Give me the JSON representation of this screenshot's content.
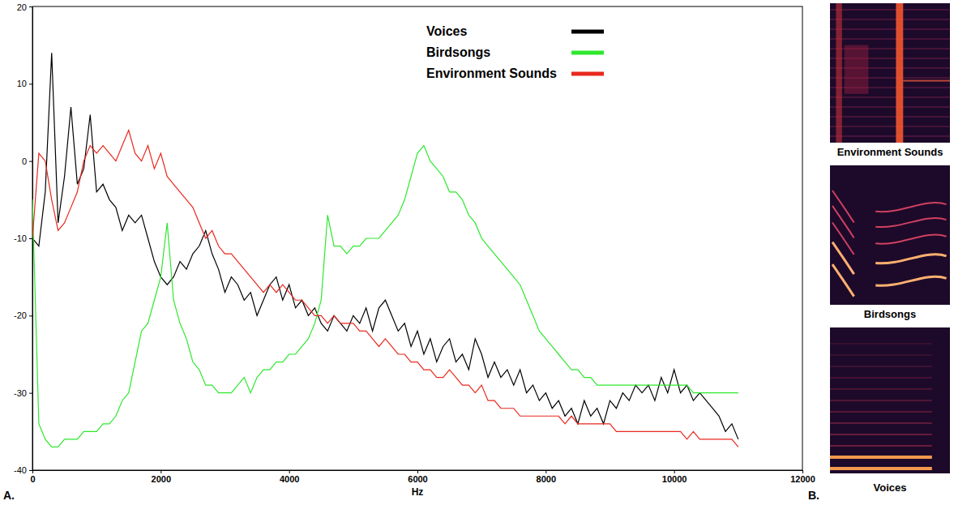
{
  "chart_data": {
    "type": "line",
    "panel_label": "A.",
    "x_label": "Hz",
    "xlim": [
      0,
      12000
    ],
    "xticks": [
      0,
      2000,
      4000,
      6000,
      8000,
      10000,
      12000
    ],
    "ylim": [
      -40,
      20
    ],
    "yticks": [
      -40,
      -30,
      -20,
      -10,
      0,
      10,
      20
    ],
    "grid": false,
    "legend": "upper right",
    "x": [
      0,
      100,
      200,
      300,
      400,
      500,
      600,
      700,
      800,
      900,
      1000,
      1100,
      1200,
      1300,
      1400,
      1500,
      1600,
      1700,
      1800,
      1900,
      2000,
      2100,
      2200,
      2300,
      2400,
      2500,
      2600,
      2700,
      2800,
      2900,
      3000,
      3100,
      3200,
      3300,
      3400,
      3500,
      3600,
      3700,
      3800,
      3900,
      4000,
      4100,
      4200,
      4300,
      4400,
      4500,
      4600,
      4700,
      4800,
      4900,
      5000,
      5100,
      5200,
      5300,
      5400,
      5500,
      5600,
      5700,
      5800,
      5900,
      6000,
      6100,
      6200,
      6300,
      6400,
      6500,
      6600,
      6700,
      6800,
      6900,
      7000,
      7100,
      7200,
      7300,
      7400,
      7500,
      7600,
      7700,
      7800,
      7900,
      8000,
      8100,
      8200,
      8300,
      8400,
      8500,
      8600,
      8700,
      8800,
      8900,
      9000,
      9100,
      9200,
      9300,
      9400,
      9500,
      9600,
      9700,
      9800,
      9900,
      10000,
      10100,
      10200,
      10300,
      10400,
      10500,
      10600,
      10700,
      10800,
      10900,
      11000
    ],
    "series": [
      {
        "name": "Voices",
        "color": "#000000",
        "values": [
          -10,
          -11,
          -4,
          14,
          -8,
          -2,
          7,
          -3,
          -1,
          6,
          -4,
          -3,
          -5,
          -6,
          -9,
          -7,
          -8,
          -7,
          -10,
          -13,
          -15,
          -16,
          -15,
          -13,
          -14,
          -12,
          -11,
          -9,
          -12,
          -14,
          -17,
          -15,
          -16,
          -18,
          -17,
          -20,
          -18,
          -16,
          -15,
          -18,
          -16,
          -19,
          -18,
          -20,
          -19,
          -21,
          -22,
          -20,
          -21,
          -22,
          -20,
          -21,
          -19,
          -22,
          -19,
          -18,
          -20,
          -22,
          -21,
          -24,
          -22,
          -25,
          -23,
          -26,
          -24,
          -23,
          -26,
          -25,
          -27,
          -23,
          -25,
          -28,
          -26,
          -28,
          -27,
          -29,
          -27,
          -30,
          -29,
          -31,
          -30,
          -32,
          -31,
          -33,
          -32,
          -34,
          -31,
          -33,
          -32,
          -34,
          -31,
          -32,
          -30,
          -31,
          -29,
          -30,
          -29,
          -31,
          -28,
          -30,
          -27,
          -30,
          -29,
          -31,
          -30,
          -31,
          -32,
          -33,
          -35,
          -34,
          -36
        ]
      },
      {
        "name": "Birdsongs",
        "color": "#2ee82e",
        "values": [
          -5,
          -34,
          -36,
          -37,
          -37,
          -36,
          -36,
          -36,
          -35,
          -35,
          -35,
          -34,
          -34,
          -33,
          -31,
          -30,
          -26,
          -22,
          -21,
          -18,
          -15,
          -8,
          -18,
          -21,
          -23,
          -26,
          -27,
          -29,
          -29,
          -30,
          -30,
          -30,
          -29,
          -28,
          -30,
          -28,
          -27,
          -27,
          -26,
          -26,
          -25,
          -25,
          -24,
          -23,
          -21,
          -18,
          -7,
          -11,
          -11,
          -12,
          -11,
          -11,
          -10,
          -10,
          -10,
          -9,
          -8,
          -7,
          -5,
          -2,
          1,
          2,
          0,
          -1,
          -2,
          -4,
          -4,
          -5,
          -7,
          -8,
          -10,
          -11,
          -12,
          -13,
          -14,
          -15,
          -16,
          -18,
          -20,
          -22,
          -23,
          -24,
          -25,
          -26,
          -27,
          -27,
          -28,
          -28,
          -29,
          -29,
          -29,
          -29,
          -29,
          -29,
          -29,
          -29,
          -29,
          -29,
          -29,
          -29,
          -29,
          -29,
          -29,
          -30,
          -30,
          -30,
          -30,
          -30,
          -30,
          -30,
          -30
        ]
      },
      {
        "name": "Environment Sounds",
        "color": "#e8281e",
        "values": [
          -10,
          1,
          0,
          -5,
          -9,
          -8,
          -6,
          -4,
          0,
          2,
          1,
          2,
          1,
          0,
          2,
          4,
          1,
          0,
          2,
          -1,
          1,
          -2,
          -3,
          -4,
          -5,
          -6,
          -8,
          -10,
          -9,
          -11,
          -12,
          -12,
          -13,
          -14,
          -15,
          -16,
          -17,
          -16,
          -17,
          -16,
          -17,
          -18,
          -18,
          -19,
          -20,
          -20,
          -21,
          -20,
          -21,
          -21,
          -21,
          -22,
          -22,
          -23,
          -24,
          -23,
          -24,
          -25,
          -25,
          -26,
          -26,
          -27,
          -27,
          -28,
          -28,
          -27,
          -28,
          -29,
          -29,
          -30,
          -29,
          -31,
          -31,
          -32,
          -32,
          -32,
          -33,
          -33,
          -33,
          -33,
          -33,
          -33,
          -33,
          -34,
          -33,
          -34,
          -34,
          -34,
          -34,
          -34,
          -34,
          -35,
          -35,
          -35,
          -35,
          -35,
          -35,
          -35,
          -35,
          -35,
          -35,
          -35,
          -36,
          -35,
          -36,
          -36,
          -36,
          -36,
          -36,
          -36,
          -37
        ]
      }
    ]
  },
  "spectrograms": {
    "panel_label": "B.",
    "titles": [
      "Environment Sounds",
      "Birdsongs",
      "Voices"
    ]
  }
}
